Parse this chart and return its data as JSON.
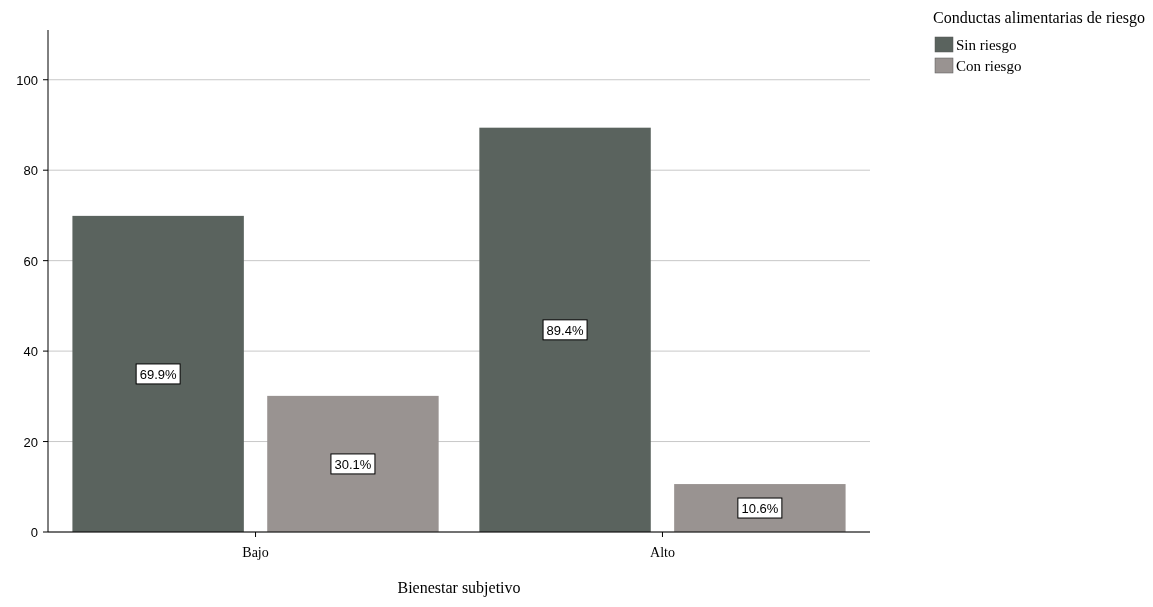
{
  "chart_data": {
    "type": "bar",
    "xlabel": "Bienestar subjetivo",
    "legend_title": "Conductas alimentarias de riesgo",
    "categories": [
      "Bajo",
      "Alto"
    ],
    "series": [
      {
        "name": "Sin riesgo",
        "color": "#5a635e",
        "values": [
          69.9,
          89.4
        ],
        "value_labels": [
          "69.9%",
          "89.4%"
        ]
      },
      {
        "name": "Con riesgo",
        "color": "#999391",
        "values": [
          30.1,
          10.6
        ],
        "value_labels": [
          "30.1%",
          "10.6%"
        ]
      }
    ],
    "ylim": [
      0,
      111
    ],
    "yticks": [
      0,
      20,
      40,
      60,
      80,
      100
    ],
    "grid": "y",
    "legend": "top right"
  }
}
